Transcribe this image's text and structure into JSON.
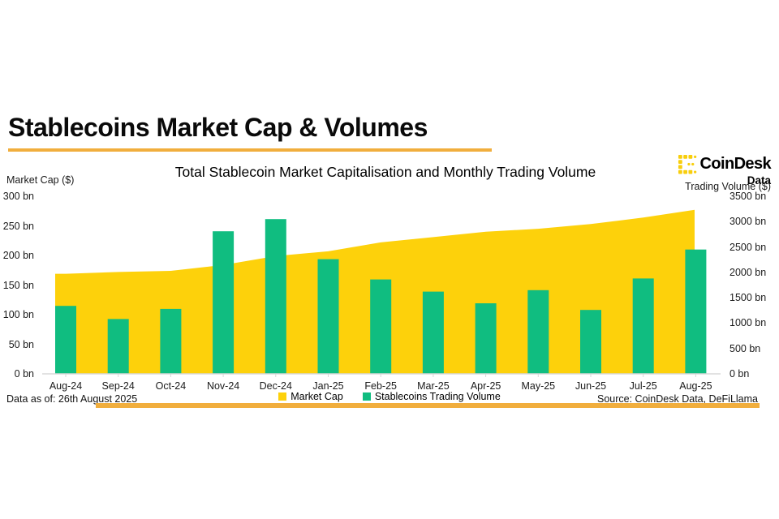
{
  "page": {
    "title": "Stablecoins Market Cap & Volumes",
    "subtitle": "Total Stablecoin Market Capitalisation and Monthly Trading Volume",
    "footer_left": "Data as of: 26th August 2025",
    "footer_right": "Source: CoinDesk Data, DeFiLlama",
    "brand": {
      "name": "CoinDesk",
      "sub": "Data"
    }
  },
  "axes": {
    "left_label": "Market Cap ($)",
    "right_label": "Trading Volume ($)",
    "left_ticks": [
      "300 bn",
      "250 bn",
      "200 bn",
      "150 bn",
      "100 bn",
      "50 bn",
      "0 bn"
    ],
    "right_ticks": [
      "3500 bn",
      "3000 bn",
      "2500 bn",
      "2000 bn",
      "1500 bn",
      "1000 bn",
      "500 bn",
      "0 bn"
    ]
  },
  "legend": [
    {
      "label": "Market Cap",
      "color": "#FDD10B"
    },
    {
      "label": "Stablecoins Trading Volume",
      "color": "#10BD80"
    }
  ],
  "colors": {
    "area_yellow": "#FDD10B",
    "bar_green": "#10BD80",
    "accent_amber": "#F1AE3D",
    "logo_yellow": "#F8CE0C",
    "axis_line": "#D8D8D8"
  },
  "chart_data": {
    "type": "combo",
    "title": "Total Stablecoin Market Capitalisation and Monthly Trading Volume",
    "categories": [
      "Aug-24",
      "Sep-24",
      "Oct-24",
      "Nov-24",
      "Dec-24",
      "Jan-25",
      "Feb-25",
      "Mar-25",
      "Apr-25",
      "May-25",
      "Jun-25",
      "Jul-25",
      "Aug-25"
    ],
    "series": [
      {
        "name": "Market Cap",
        "type": "area",
        "axis": "left",
        "unit": "bn $",
        "color": "#FDD10B",
        "values": [
          169,
          172,
          174,
          184,
          199,
          207,
          222,
          231,
          240,
          245,
          253,
          264,
          277
        ]
      },
      {
        "name": "Stablecoins Trading Volume",
        "type": "bar",
        "axis": "right",
        "unit": "bn $",
        "color": "#10BD80",
        "values": [
          1340,
          1080,
          1280,
          2810,
          3050,
          2260,
          1860,
          1620,
          1390,
          1650,
          1260,
          1880,
          2450
        ]
      }
    ],
    "left_axis": {
      "label": "Market Cap ($)",
      "range": [
        0,
        300
      ],
      "tick_step": 50
    },
    "right_axis": {
      "label": "Trading Volume ($)",
      "range": [
        0,
        3500
      ],
      "tick_step": 500
    },
    "grid": false,
    "legend_position": "bottom-center"
  }
}
